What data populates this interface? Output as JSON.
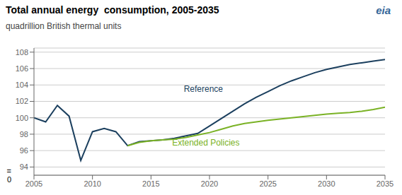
{
  "chart_data": {
    "type": "line",
    "title": "Total annual energy  consumption, 2005-2035",
    "subtitle": "quadrillion British thermal units",
    "logo": "eia",
    "axis_break": [
      "=",
      "0"
    ],
    "xlim": [
      2005,
      2035
    ],
    "xticks": [
      2005,
      2010,
      2015,
      2020,
      2025,
      2030,
      2035
    ],
    "ylim": [
      93.0,
      108.5
    ],
    "yticks": [
      94,
      96,
      98,
      100,
      102,
      104,
      106,
      108
    ],
    "grid": true,
    "series": [
      {
        "name": "Reference",
        "color": "#1b3f5e",
        "label": {
          "x": 2017.5,
          "y": 103.5
        },
        "x": [
          2005,
          2006,
          2007,
          2008,
          2009,
          2010,
          2011,
          2012,
          2013,
          2014,
          2015,
          2016,
          2017,
          2018,
          2019,
          2020,
          2021,
          2022,
          2023,
          2024,
          2025,
          2026,
          2027,
          2028,
          2029,
          2030,
          2031,
          2032,
          2033,
          2034,
          2035
        ],
        "values": [
          100.0,
          99.5,
          101.5,
          100.2,
          94.8,
          98.3,
          98.7,
          98.3,
          96.6,
          97.1,
          97.2,
          97.3,
          97.5,
          97.8,
          98.1,
          99.0,
          99.9,
          100.8,
          101.7,
          102.5,
          103.2,
          103.9,
          104.5,
          105.0,
          105.5,
          105.9,
          106.2,
          106.5,
          106.7,
          106.9,
          107.1
        ]
      },
      {
        "name": "Extended Policies",
        "color": "#7ab225",
        "label": {
          "x": 2016.5,
          "y": 97.0
        },
        "x": [
          2013,
          2014,
          2015,
          2016,
          2017,
          2018,
          2019,
          2020,
          2021,
          2022,
          2023,
          2024,
          2025,
          2026,
          2027,
          2028,
          2029,
          2030,
          2031,
          2032,
          2033,
          2034,
          2035
        ],
        "values": [
          96.6,
          97.0,
          97.2,
          97.3,
          97.4,
          97.6,
          97.9,
          98.2,
          98.6,
          99.0,
          99.3,
          99.5,
          99.7,
          99.85,
          100.0,
          100.15,
          100.3,
          100.45,
          100.55,
          100.65,
          100.8,
          101.0,
          101.3
        ]
      }
    ]
  }
}
